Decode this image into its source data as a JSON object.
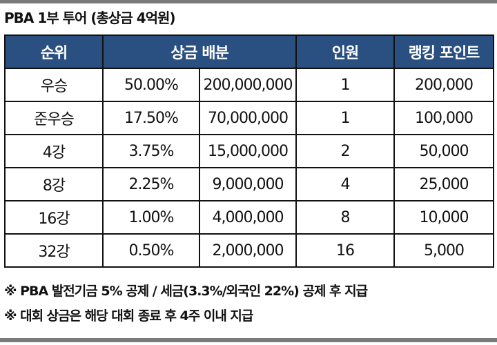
{
  "caption": "PBA 1부 투어 (총상금 4억원)",
  "table": {
    "headers": [
      "순위",
      "상금 배분",
      "인원",
      "랭킹 포인트"
    ],
    "rows": [
      {
        "rank": "우승",
        "pct": "50.00%",
        "amount": "200,000,000",
        "count": "1",
        "points": "200,000"
      },
      {
        "rank": "준우승",
        "pct": "17.50%",
        "amount": "70,000,000",
        "count": "1",
        "points": "100,000"
      },
      {
        "rank": "4강",
        "pct": "3.75%",
        "amount": "15,000,000",
        "count": "2",
        "points": "50,000"
      },
      {
        "rank": "8강",
        "pct": "2.25%",
        "amount": "9,000,000",
        "count": "4",
        "points": "25,000"
      },
      {
        "rank": "16강",
        "pct": "1.00%",
        "amount": "4,000,000",
        "count": "8",
        "points": "10,000"
      },
      {
        "rank": "32강",
        "pct": "0.50%",
        "amount": "2,000,000",
        "count": "16",
        "points": "5,000"
      }
    ]
  },
  "notes": [
    "※ PBA 발전기금 5% 공제 / 세금(3.3%/외국인 22%) 공제 후 지급",
    "※ 대회 상금은 해당 대회 종료 후 4주 이내 지급"
  ]
}
